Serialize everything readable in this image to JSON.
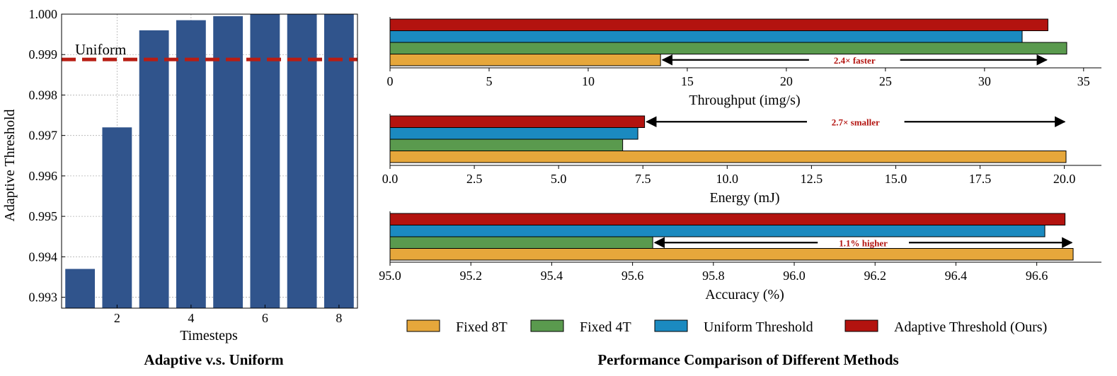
{
  "colors": {
    "bar_left": "#30548c",
    "uniform_line": "#b81d13",
    "fixed8": "#e6a73b",
    "fixed4": "#5a9a4e",
    "uniform": "#1b8ac0",
    "adaptive": "#b3130f",
    "annotation": "#b3130f"
  },
  "chart_data": [
    {
      "type": "bar",
      "caption": "Adaptive v.s. Uniform",
      "xlabel": "Timesteps",
      "ylabel": "Adaptive Threshold",
      "categories": [
        1,
        2,
        3,
        4,
        5,
        6,
        7,
        8
      ],
      "values": [
        0.9937,
        0.9972,
        0.9996,
        0.99985,
        0.99995,
        1.0,
        1.0,
        1.0
      ],
      "ylim": [
        0.99273,
        1.0
      ],
      "yticks": [
        "0.993",
        "0.994",
        "0.995",
        "0.996",
        "0.997",
        "0.998",
        "0.999",
        "1.000"
      ],
      "xticks": [
        "2",
        "4",
        "6",
        "8"
      ],
      "reference_line": {
        "label": "Uniform",
        "value": 0.99888
      },
      "grid": true
    },
    {
      "type": "bar",
      "orientation": "horizontal",
      "caption": "Performance Comparison of Different Methods",
      "legend": [
        "Fixed 8T",
        "Fixed 4T",
        "Uniform Threshold",
        "Adaptive Threshold (Ours)"
      ],
      "panels": [
        {
          "xlabel": "Throughput (img/s)",
          "xlim": [
            0,
            35.9
          ],
          "xticks": [
            "0",
            "5",
            "10",
            "15",
            "20",
            "25",
            "30",
            "35"
          ],
          "tick_values": [
            0,
            5,
            10,
            15,
            20,
            25,
            30,
            35
          ],
          "values": {
            "fixed8": 13.65,
            "fixed4": 34.15,
            "uniform": 31.9,
            "adaptive": 33.2
          },
          "annotation": {
            "text": "2.4× faster",
            "from": 13.65,
            "to": 33.2,
            "bar": "fixed8"
          }
        },
        {
          "xlabel": "Energy (mJ)",
          "xlim": [
            0,
            21.1
          ],
          "xticks": [
            "0.0",
            "2.5",
            "5.0",
            "7.5",
            "10.0",
            "12.5",
            "15.0",
            "17.5",
            "20.0"
          ],
          "tick_values": [
            0,
            2.5,
            5,
            7.5,
            10,
            12.5,
            15,
            17.5,
            20
          ],
          "values": {
            "fixed8": 20.05,
            "fixed4": 6.9,
            "uniform": 7.35,
            "adaptive": 7.55
          },
          "annotation": {
            "text": "2.7× smaller",
            "from": 7.55,
            "to": 20.05,
            "bar": "adaptive"
          }
        },
        {
          "xlabel": "Accuracy (%)",
          "xlim": [
            95.0,
            96.76
          ],
          "xticks": [
            "95.0",
            "95.2",
            "95.4",
            "95.6",
            "95.8",
            "96.0",
            "96.2",
            "96.4",
            "96.6"
          ],
          "tick_values": [
            95.0,
            95.2,
            95.4,
            95.6,
            95.8,
            96.0,
            96.2,
            96.4,
            96.6
          ],
          "values": {
            "fixed8": 96.69,
            "fixed4": 95.65,
            "uniform": 96.62,
            "adaptive": 96.67
          },
          "annotation": {
            "text": "1.1% higher",
            "from": 95.65,
            "to": 96.69,
            "bar": "fixed4"
          }
        }
      ]
    }
  ]
}
